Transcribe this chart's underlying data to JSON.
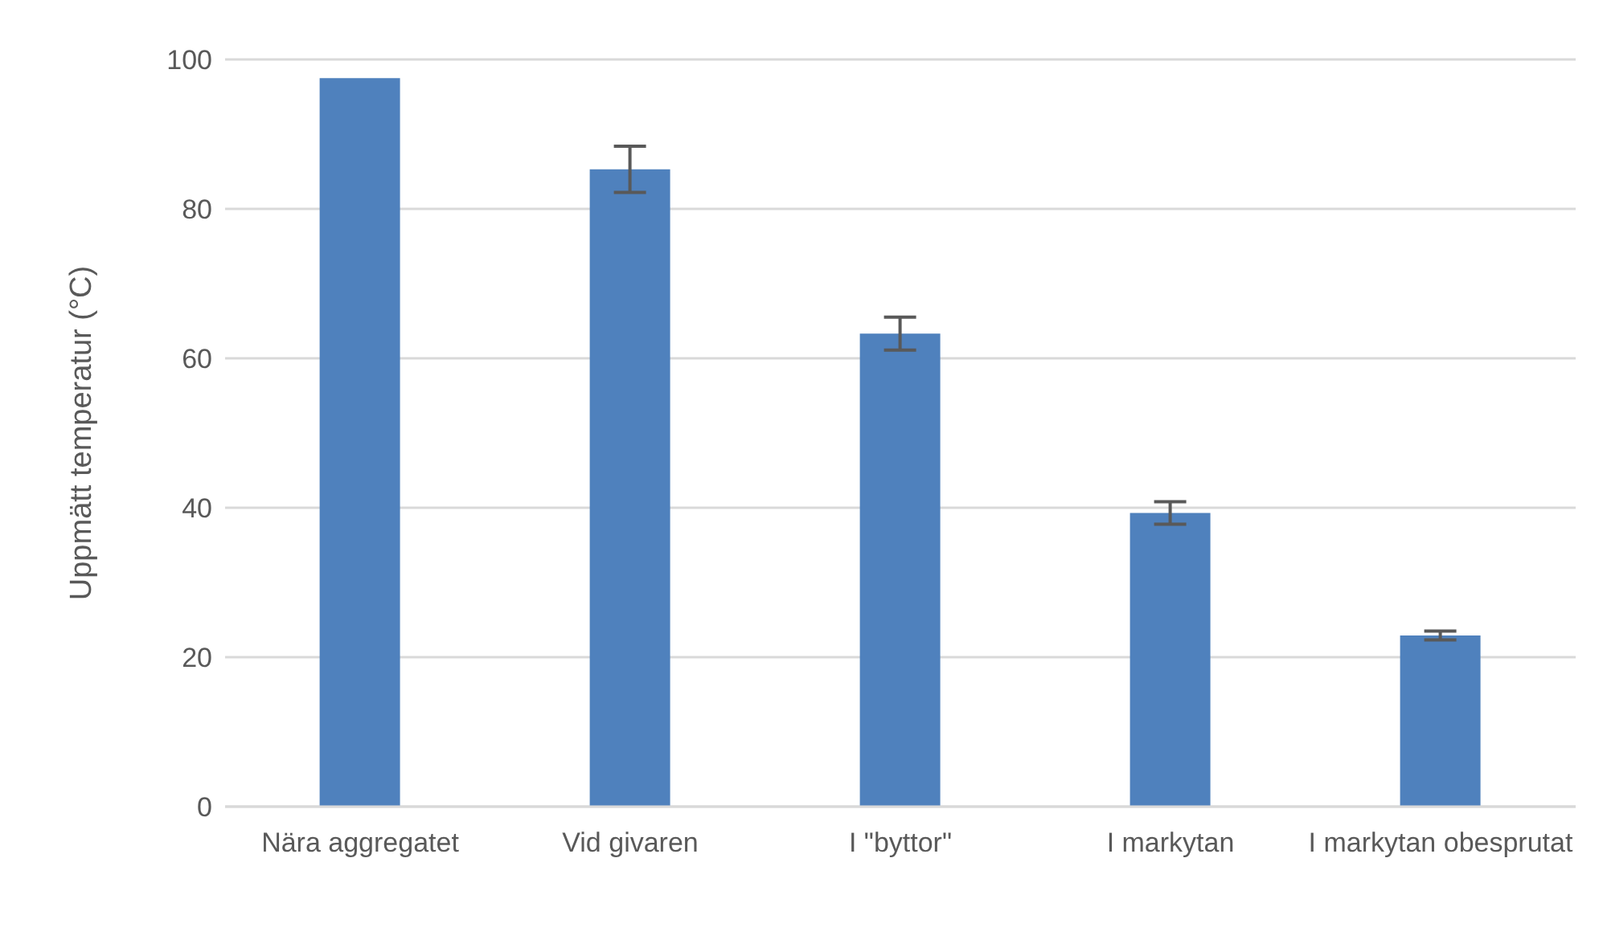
{
  "chart_data": {
    "type": "bar",
    "ylabel": "Uppmätt temperatur (°C)",
    "categories": [
      "Nära aggregatet",
      "Vid givaren",
      "I \"byttor\"",
      "I markytan",
      "I markytan obesprutat"
    ],
    "values": [
      97.5,
      85.3,
      63.3,
      39.3,
      22.9
    ],
    "errors": [
      null,
      3.1,
      2.2,
      1.5,
      0.6
    ],
    "color": "#4f81bd",
    "ylim": [
      0,
      100
    ],
    "yticks": [
      0,
      20,
      40,
      60,
      80,
      100
    ],
    "grid": "y",
    "legend": false
  }
}
